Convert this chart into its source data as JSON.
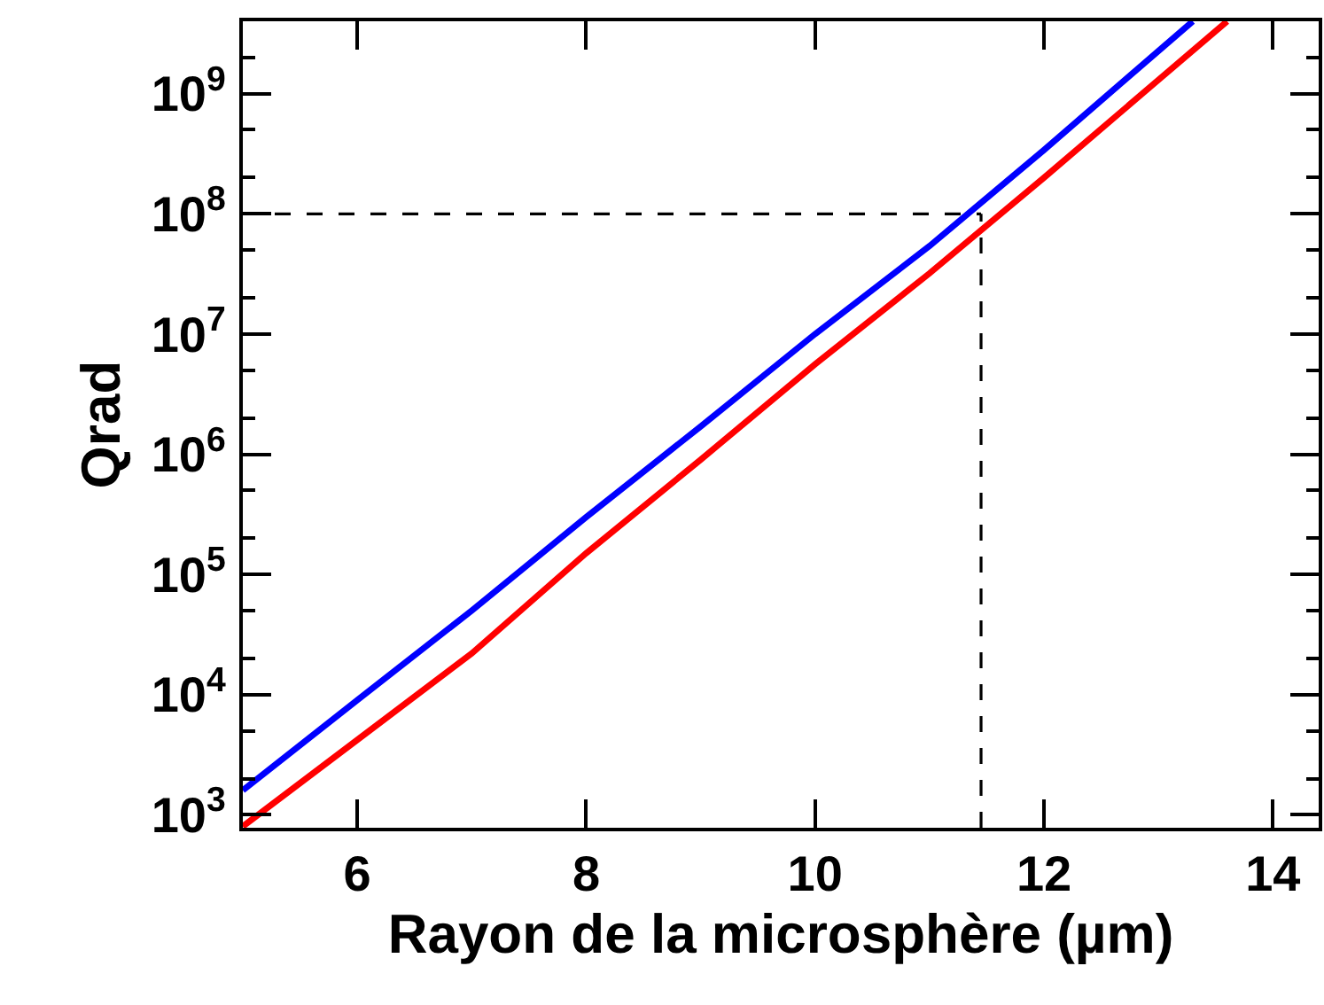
{
  "chart_data": {
    "type": "line",
    "xlabel": "Rayon de la microsphère (µm)",
    "ylabel": "Qrad",
    "log": "y",
    "xlim": [
      5,
      14.4
    ],
    "xticks": [
      6,
      8,
      10,
      12,
      14
    ],
    "ylim": [
      780,
      4000000000
    ],
    "yticks": [
      {
        "value": 1000,
        "label": "10$^{3}$"
      },
      {
        "value": 10000,
        "label": "10$^{4}$"
      },
      {
        "value": 100000,
        "label": "10$^{5}$"
      },
      {
        "value": 1000000,
        "label": "10$^{6}$"
      },
      {
        "value": 10000000,
        "label": "10$^{7}$"
      },
      {
        "value": 100000000,
        "label": "10$^{8}$"
      },
      {
        "value": 1000000000,
        "label": "10$^{9}$"
      }
    ],
    "grid": false,
    "marker": "none",
    "line_style": "solid",
    "x": [
      5,
      6,
      7,
      8,
      9,
      10,
      11,
      12,
      13,
      13.6
    ],
    "series": [
      {
        "color": "#0000ff",
        "x": [
          5,
          6,
          7,
          8,
          9,
          10,
          11,
          12,
          13.3
        ],
        "values": [
          1600,
          9000,
          50000,
          300000,
          1700000,
          10000000,
          54000000,
          340000000,
          4000000000
        ]
      },
      {
        "color": "#ff0000",
        "values": [
          800,
          4200,
          22000,
          150000,
          900000,
          5600000,
          32000000,
          200000000,
          1300000000,
          4000000000
        ]
      }
    ],
    "ref_lines": [
      {
        "axis": "y",
        "value": 100000000,
        "color": "#000000",
        "line_style": "dashed"
      },
      {
        "axis": "x",
        "value": 11.45,
        "color": "#000000",
        "line_style": "dashed"
      }
    ]
  }
}
